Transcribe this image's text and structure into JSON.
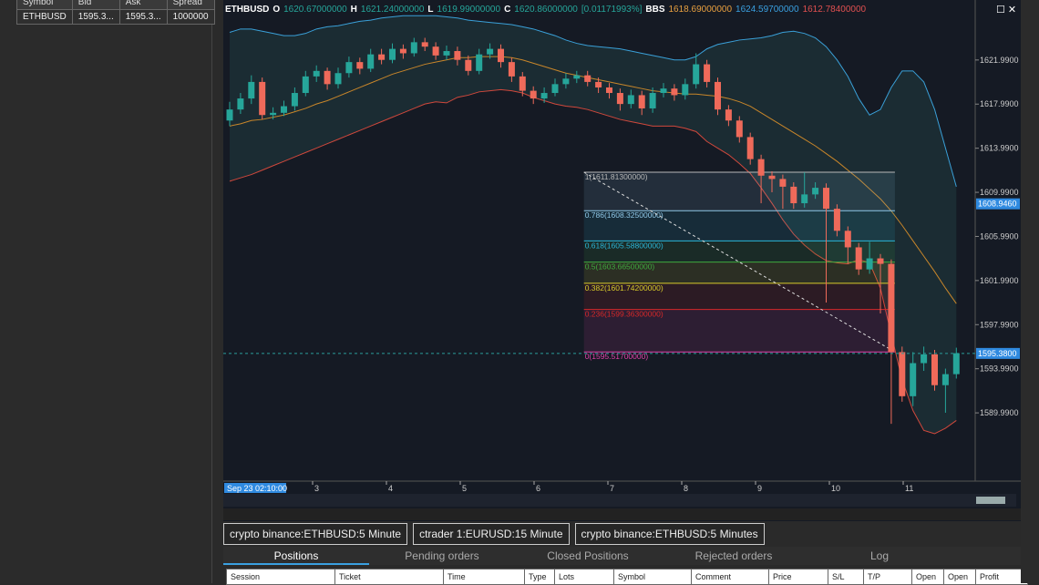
{
  "market_watch": {
    "headers": [
      "Symbol",
      "Bid",
      "Ask",
      "Spread"
    ],
    "row": [
      "ETHBUSD",
      "1595.3...",
      "1595.3...",
      "1000000"
    ]
  },
  "header": {
    "symbol": "ETHBUSD",
    "items": [
      {
        "label": "O",
        "value": "1620.67000000"
      },
      {
        "label": "H",
        "value": "1621.24000000"
      },
      {
        "label": "L",
        "value": "1619.99000000"
      },
      {
        "label": "C",
        "value": "1620.86000000"
      }
    ],
    "change": "[0.01171993%]",
    "indicator": "BBS",
    "indicator_values": [
      "1618.69000000",
      "1624.59700000",
      "1612.78400000"
    ]
  },
  "chart_data": {
    "type": "candlestick",
    "up_color": "#26a69a",
    "down_color": "#ef6a5a",
    "open": [
      1616.5,
      1617.5,
      1618.5,
      1620.0,
      1617.0,
      1617.2,
      1617.8,
      1619.0,
      1620.5,
      1621.0,
      1619.8,
      1620.8,
      1621.8,
      1621.2,
      1622.5,
      1622.0,
      1623.0,
      1622.6,
      1623.6,
      1623.2,
      1622.4,
      1622.8,
      1622.0,
      1621.0,
      1622.5,
      1623.0,
      1621.8,
      1620.5,
      1619.2,
      1618.5,
      1619.0,
      1619.8,
      1620.3,
      1620.6,
      1620.0,
      1619.5,
      1619.0,
      1618.0,
      1618.8,
      1617.6,
      1619.0,
      1619.4,
      1618.8,
      1619.8,
      1621.6,
      1620.0,
      1617.5,
      1616.5,
      1615.0,
      1613.0,
      1611.5,
      1611.2,
      1610.5,
      1609.0,
      1609.8,
      1610.4,
      1608.5,
      1606.5,
      1605.0,
      1603.0,
      1604.0,
      1603.5,
      1595.5,
      1591.5,
      1594.5,
      1595.3,
      1592.5,
      1593.5
    ],
    "high": [
      1618.2,
      1619.0,
      1620.6,
      1620.4,
      1617.7,
      1618.3,
      1619.5,
      1621.0,
      1621.5,
      1621.3,
      1621.3,
      1622.3,
      1622.2,
      1623.0,
      1623.0,
      1623.5,
      1623.4,
      1624.0,
      1624.0,
      1623.6,
      1623.3,
      1623.2,
      1622.4,
      1623.0,
      1623.5,
      1623.4,
      1622.2,
      1620.9,
      1619.6,
      1619.5,
      1620.3,
      1620.8,
      1621.0,
      1621.0,
      1620.4,
      1619.9,
      1619.4,
      1619.3,
      1619.2,
      1619.5,
      1619.9,
      1619.8,
      1620.3,
      1622.6,
      1622.0,
      1620.4,
      1617.9,
      1616.9,
      1615.4,
      1613.4,
      1611.9,
      1611.6,
      1610.9,
      1611.8,
      1610.9,
      1610.8,
      1608.9,
      1606.9,
      1605.4,
      1605.5,
      1604.4,
      1603.9,
      1596.0,
      1595.5,
      1596.0,
      1595.7,
      1594.0,
      1595.9
    ],
    "low": [
      1616.0,
      1617.1,
      1618.0,
      1616.6,
      1616.6,
      1616.9,
      1617.4,
      1618.7,
      1620.0,
      1619.3,
      1619.4,
      1620.4,
      1620.7,
      1620.9,
      1621.6,
      1621.7,
      1622.1,
      1622.3,
      1622.8,
      1622.0,
      1622.0,
      1621.5,
      1620.6,
      1620.7,
      1622.1,
      1621.3,
      1620.0,
      1618.7,
      1618.0,
      1618.1,
      1618.7,
      1619.4,
      1619.9,
      1619.6,
      1619.0,
      1618.5,
      1617.4,
      1617.6,
      1617.0,
      1617.2,
      1618.6,
      1618.3,
      1618.4,
      1619.4,
      1619.5,
      1617.0,
      1616.0,
      1614.5,
      1612.5,
      1609.0,
      1610.0,
      1608.5,
      1608.5,
      1608.6,
      1609.4,
      1600.0,
      1606.0,
      1603.5,
      1602.5,
      1602.6,
      1599.0,
      1589.0,
      1591.0,
      1590.6,
      1593.8,
      1592.0,
      1590.0,
      1593.1
    ],
    "close": [
      1617.5,
      1618.5,
      1620.0,
      1617.0,
      1617.2,
      1617.8,
      1619.0,
      1620.5,
      1621.0,
      1619.8,
      1620.8,
      1621.8,
      1621.2,
      1622.5,
      1622.0,
      1623.0,
      1622.6,
      1623.6,
      1623.2,
      1622.4,
      1622.8,
      1622.0,
      1621.0,
      1622.5,
      1623.0,
      1621.8,
      1620.5,
      1619.2,
      1618.5,
      1619.0,
      1619.8,
      1620.3,
      1620.6,
      1620.0,
      1619.5,
      1619.0,
      1618.0,
      1618.8,
      1617.6,
      1619.0,
      1619.4,
      1618.8,
      1619.8,
      1621.6,
      1620.0,
      1617.5,
      1616.5,
      1615.0,
      1613.0,
      1611.5,
      1611.2,
      1610.5,
      1609.0,
      1609.8,
      1610.4,
      1608.5,
      1606.5,
      1605.0,
      1603.0,
      1604.0,
      1603.5,
      1595.5,
      1591.5,
      1594.5,
      1595.3,
      1592.5,
      1593.5,
      1595.4
    ],
    "bands": [
      {
        "color": "#3aa0d8",
        "values": [
          1624.5,
          1624.8,
          1624.8,
          1624.6,
          1624.4,
          1624.2,
          1624.2,
          1624.4,
          1624.8,
          1625.0,
          1625.1,
          1625.3,
          1625.5,
          1625.6,
          1625.8,
          1625.9,
          1626.0,
          1626.0,
          1626.0,
          1626.0,
          1625.9,
          1625.8,
          1625.6,
          1625.5,
          1625.4,
          1625.3,
          1625.2,
          1625.0,
          1624.8,
          1624.5,
          1624.2,
          1623.8,
          1623.5,
          1623.3,
          1623.2,
          1623.1,
          1623.0,
          1622.8,
          1622.6,
          1622.4,
          1622.2,
          1622.0,
          1622.0,
          1622.3,
          1623.0,
          1623.4,
          1623.6,
          1623.8,
          1623.9,
          1624.0,
          1624.2,
          1624.5,
          1624.6,
          1624.4,
          1624.0,
          1623.2,
          1622.0,
          1620.5,
          1618.5,
          1617.0,
          1617.5,
          1619.5,
          1621.0,
          1621.0,
          1620.0,
          1617.5,
          1614.0,
          1610.5
        ]
      },
      {
        "color": "#c8862a",
        "values": [
          1616.0,
          1616.2,
          1616.5,
          1616.6,
          1616.8,
          1617.0,
          1617.3,
          1617.6,
          1618.0,
          1618.3,
          1618.7,
          1619.1,
          1619.5,
          1619.9,
          1620.3,
          1620.7,
          1621.0,
          1621.3,
          1621.6,
          1621.8,
          1622.0,
          1622.2,
          1622.2,
          1622.3,
          1622.3,
          1622.3,
          1622.2,
          1622.0,
          1621.7,
          1621.4,
          1621.1,
          1620.8,
          1620.6,
          1620.4,
          1620.2,
          1620.0,
          1619.8,
          1619.6,
          1619.4,
          1619.2,
          1619.1,
          1619.0,
          1618.9,
          1618.9,
          1618.8,
          1618.7,
          1618.5,
          1618.2,
          1617.8,
          1617.2,
          1616.6,
          1616.0,
          1615.4,
          1614.8,
          1614.2,
          1613.5,
          1612.8,
          1612.0,
          1611.2,
          1610.3,
          1609.4,
          1608.3,
          1607.0,
          1605.6,
          1604.2,
          1602.8,
          1601.3,
          1599.9
        ]
      },
      {
        "color": "#d0483c",
        "values": [
          1611.0,
          1611.3,
          1611.6,
          1612.0,
          1612.4,
          1612.8,
          1613.2,
          1613.6,
          1614.0,
          1614.4,
          1614.8,
          1615.2,
          1615.6,
          1616.0,
          1616.4,
          1616.8,
          1617.2,
          1617.6,
          1618.0,
          1618.2,
          1618.1,
          1618.6,
          1618.8,
          1619.1,
          1619.2,
          1619.3,
          1619.2,
          1619.0,
          1618.6,
          1618.3,
          1618.0,
          1617.8,
          1617.7,
          1617.5,
          1617.2,
          1616.9,
          1616.6,
          1616.4,
          1616.2,
          1616.0,
          1616.0,
          1616.0,
          1615.8,
          1615.5,
          1614.6,
          1614.0,
          1613.4,
          1612.6,
          1611.7,
          1610.4,
          1609.0,
          1607.5,
          1606.2,
          1605.2,
          1604.4,
          1603.8,
          1603.6,
          1603.5,
          1603.9,
          1603.6,
          1601.3,
          1597.1,
          1593.0,
          1590.2,
          1588.4,
          1588.1,
          1588.6,
          1589.3
        ]
      }
    ],
    "ylim": [
      1583.8,
      1627.1
    ],
    "yticks": [
      {
        "value": 1621.99,
        "label": "1621.9900"
      },
      {
        "value": 1617.99,
        "label": "1617.9900"
      },
      {
        "value": 1613.99,
        "label": "1613.9900"
      },
      {
        "value": 1609.99,
        "label": "1609.9900"
      },
      {
        "value": 1605.99,
        "label": "1605.9900"
      },
      {
        "value": 1601.99,
        "label": "1601.9900"
      },
      {
        "value": 1597.99,
        "label": "1597.9900"
      },
      {
        "value": 1593.99,
        "label": "1593.9900"
      },
      {
        "value": 1589.99,
        "label": "1589.9900"
      }
    ],
    "price_markers": [
      {
        "value": 1608.946,
        "label": "1608.9460"
      },
      {
        "value": 1595.38,
        "label": "1595.3800"
      }
    ],
    "fib_levels": [
      {
        "value": 1611.813,
        "label": "1(1611.81300000)",
        "color": "#b8b8b8"
      },
      {
        "value": 1608.325,
        "label": "0.786(1608.32500000)",
        "color": "#8fc8e8"
      },
      {
        "value": 1605.588,
        "label": "0.618(1605.58800000)",
        "color": "#2bb6d8"
      },
      {
        "value": 1603.665,
        "label": "0.5(1603.66500000)",
        "color": "#3faa3f"
      },
      {
        "value": 1601.742,
        "label": "0.382(1601.74200000)",
        "color": "#d8cc2a"
      },
      {
        "value": 1599.363,
        "label": "0.236(1599.36300000)",
        "color": "#d82828"
      },
      {
        "value": 1595.517,
        "label": "0(1595.51700000)",
        "color": "#e040a8"
      }
    ],
    "time_labels": [
      "Sep 23 02:10:00",
      "3",
      "4",
      "5",
      "6",
      "7",
      "8",
      "9",
      "10",
      "11"
    ]
  },
  "chart_tabs": [
    "crypto binance:ETHBUSD:5 Minute",
    "ctrader 1:EURUSD:15 Minute",
    "crypto binance:ETHBUSD:5 Minutes"
  ],
  "panel_tabs": [
    "Positions",
    "Pending orders",
    "Closed Positions",
    "Rejected orders",
    "Log"
  ],
  "positions_columns": [
    "Session",
    "Ticket",
    "Time",
    "Type",
    "Lots",
    "Symbol",
    "Comment",
    "Price",
    "S/L",
    "T/P",
    "Open",
    "Open",
    "Profit"
  ]
}
